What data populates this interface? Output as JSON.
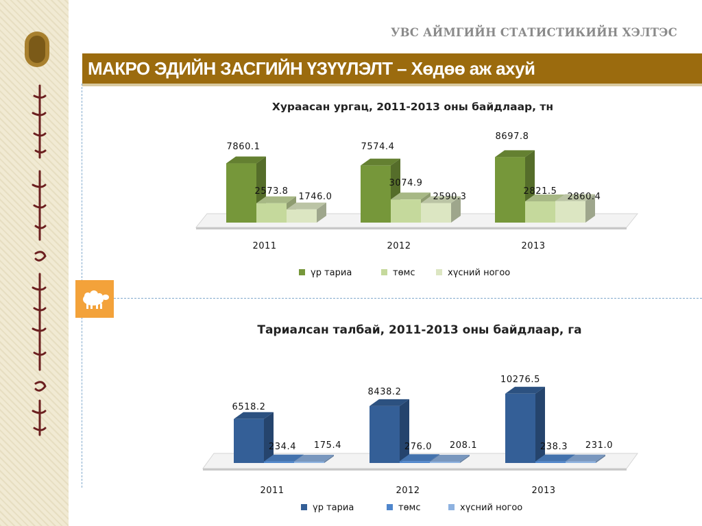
{
  "header": {
    "org_title": "УВС АЙМГИЙН СТАТИСТИКИЙН ХЭЛТЭС",
    "main_title": "МАКРО ЭДИЙН ЗАСГИЙН ҮЗҮҮЛЭЛТ – Хөдөө аж ахуй"
  },
  "icons": {
    "logo": "statistics-emblem-icon",
    "sheep": "sheep-icon",
    "script": "mongolian-script-decoration"
  },
  "chart_data": [
    {
      "type": "bar",
      "title": "Хураасан ургац, 2011-2013 оны байдлаар, тн",
      "categories": [
        "2011",
        "2012",
        "2013"
      ],
      "series": [
        {
          "name": "үр тариа",
          "values": [
            "7860.1",
            "7574.4",
            "8697.8"
          ],
          "color": "#76973a"
        },
        {
          "name": "төмс",
          "values": [
            "2573.8",
            "3074.9",
            "2821.5"
          ],
          "color": "#c5d99c"
        },
        {
          "name": "хүсний ногоо",
          "values": [
            "1746.0",
            "2590.3",
            "2860.4"
          ],
          "color": "#dce6c2"
        }
      ],
      "ylim": [
        0,
        10000
      ],
      "grid": false,
      "legend": "bottom"
    },
    {
      "type": "bar",
      "title": "Тариалсан талбай, 2011-2013 оны байдлаар, га",
      "categories": [
        "2011",
        "2012",
        "2013"
      ],
      "series": [
        {
          "name": "үр тариа",
          "values": [
            "6518.2",
            "8438.2",
            "10276.5"
          ],
          "color": "#345f97"
        },
        {
          "name": "төмс",
          "values": [
            "234.4",
            "276.0",
            "238.3"
          ],
          "color": "#4f86cc"
        },
        {
          "name": "хүсний ногоо",
          "values": [
            "175.4",
            "208.1",
            "231.0"
          ],
          "color": "#8eb2e0"
        }
      ],
      "ylim": [
        0,
        12000
      ],
      "grid": false,
      "legend": "bottom"
    }
  ]
}
